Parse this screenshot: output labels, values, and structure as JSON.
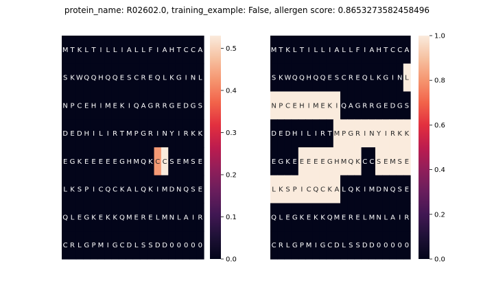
{
  "figure": {
    "title": "protein_name: R02602.0, training_example: False, allergen score: 0.8653273582458496"
  },
  "chart_data": [
    {
      "type": "heatmap",
      "colormap": "rocket",
      "rows": [
        "MTKLTILLIALLFIAHTCCA",
        "SKWQQHQQESCREQLKGINL",
        "NPCEHIMEKIQAGRRGEDGS",
        "DEDHILIRTMPGRINYIRKK",
        "EGKEEEEEGHMQKCCSEMSE",
        "LKSPICQCKALQKIMDNQSE",
        "QLEGKEKKQMERELMNLAIR",
        "CRLGPMIGCDLSSDD00000"
      ],
      "values": [
        [
          0,
          0,
          0,
          0,
          0,
          0,
          0,
          0,
          0,
          0,
          0,
          0,
          0,
          0,
          0,
          0,
          0,
          0,
          0,
          0
        ],
        [
          0,
          0,
          0,
          0,
          0,
          0,
          0,
          0,
          0,
          0,
          0,
          0,
          0,
          0,
          0,
          0,
          0,
          0,
          0,
          0
        ],
        [
          0,
          0,
          0,
          0,
          0,
          0,
          0,
          0,
          0,
          0,
          0,
          0,
          0,
          0,
          0,
          0,
          0,
          0,
          0,
          0
        ],
        [
          0,
          0,
          0,
          0,
          0,
          0,
          0,
          0,
          0,
          0,
          0,
          0,
          0,
          0,
          0,
          0,
          0,
          0,
          0,
          0
        ],
        [
          0,
          0,
          0,
          0,
          0,
          0,
          0,
          0,
          0,
          0,
          0,
          0,
          0,
          0.43,
          0.53,
          0,
          0,
          0,
          0,
          0
        ],
        [
          0,
          0,
          0,
          0,
          0,
          0,
          0,
          0,
          0,
          0,
          0,
          0,
          0,
          0,
          0,
          0,
          0,
          0,
          0,
          0
        ],
        [
          0,
          0,
          0,
          0,
          0,
          0,
          0,
          0,
          0,
          0,
          0,
          0,
          0,
          0,
          0,
          0,
          0,
          0,
          0,
          0
        ],
        [
          0,
          0,
          0,
          0,
          0,
          0,
          0,
          0,
          0,
          0,
          0,
          0,
          0,
          0,
          0,
          0,
          0,
          0,
          0,
          0
        ]
      ],
      "vmin": 0,
      "vmax": 0.53,
      "colorbar_ticks": [
        "0.0",
        "0.1",
        "0.2",
        "0.3",
        "0.4",
        "0.5"
      ],
      "colorbar_tick_values": [
        0,
        0.1,
        0.2,
        0.3,
        0.4,
        0.5
      ]
    },
    {
      "type": "heatmap",
      "colormap": "rocket",
      "rows": [
        "MTKLTILLIALLFIAHTCCA",
        "SKWQQHQQESCREQLKGINL",
        "NPCEHIMEKIQAGRRGEDGS",
        "DEDHILIRTMPGRINYIRKK",
        "EGKEEEEEGHMQKCCSEMSE",
        "LKSPICQCKALQKIMDNQSE",
        "QLEGKEKKQMERELMNLAIR",
        "CRLGPMIGCDLSSDD00000"
      ],
      "values": [
        [
          0,
          0,
          0,
          0,
          0,
          0,
          0,
          0,
          0,
          0,
          0,
          0,
          0,
          0,
          0,
          0,
          0,
          0,
          0,
          0
        ],
        [
          0,
          0,
          0,
          0,
          0,
          0,
          0,
          0,
          0,
          0,
          0,
          0,
          0,
          0,
          0,
          0,
          0,
          0,
          0,
          1
        ],
        [
          1,
          1,
          1,
          1,
          1,
          1,
          1,
          1,
          1,
          1,
          0,
          0,
          0,
          0,
          0,
          0,
          0,
          0,
          0,
          0
        ],
        [
          0,
          0,
          0,
          0,
          0,
          0,
          0,
          0,
          0,
          1,
          1,
          1,
          1,
          1,
          1,
          1,
          1,
          1,
          1,
          1
        ],
        [
          0,
          0,
          0,
          0,
          1,
          1,
          1,
          1,
          1,
          1,
          1,
          1,
          1,
          0,
          0,
          1,
          1,
          1,
          1,
          1
        ],
        [
          1,
          1,
          1,
          1,
          1,
          1,
          1,
          1,
          1,
          1,
          0,
          0,
          0,
          0,
          0,
          0,
          0,
          0,
          0,
          0
        ],
        [
          0,
          0,
          0,
          0,
          0,
          0,
          0,
          0,
          0,
          0,
          0,
          0,
          0,
          0,
          0,
          0,
          0,
          0,
          0,
          0
        ],
        [
          0,
          0,
          0,
          0,
          0,
          0,
          0,
          0,
          0,
          0,
          0,
          0,
          0,
          0,
          0,
          0,
          0,
          0,
          0,
          0
        ]
      ],
      "vmin": 0,
      "vmax": 1,
      "colorbar_ticks": [
        "0.0",
        "0.2",
        "0.4",
        "0.6",
        "0.8",
        "1.0"
      ],
      "colorbar_tick_values": [
        0,
        0.2,
        0.4,
        0.6,
        0.8,
        1.0
      ]
    }
  ]
}
